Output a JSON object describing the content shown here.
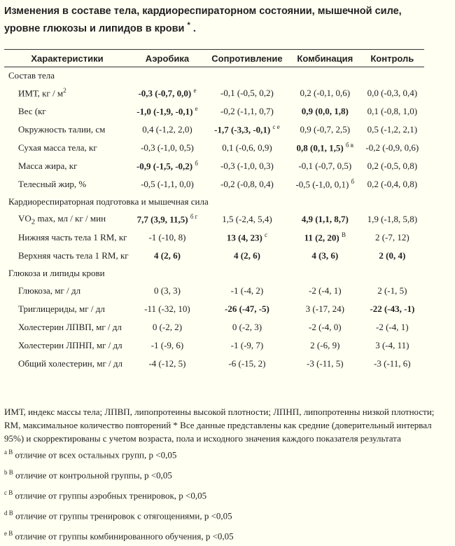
{
  "title": "Изменения в составе тела, кардиореспираторном состоянии, мышечной силе, уровне глюкозы и липидов в крови",
  "title_mark": "*",
  "title_end": ".",
  "headers": [
    "Характеристики",
    "Аэробика",
    "Сопротивление",
    "Комбинация",
    "Контроль"
  ],
  "sections": [
    {
      "name": "Состав тела",
      "rows": [
        {
          "label": "ИМТ, кг / м",
          "label_sup": "2",
          "cells": [
            {
              "v": "-0,3 (-0,7, 0,0)",
              "b": true,
              "s": "е"
            },
            {
              "v": "-0,1 (-0,5, 0,2)",
              "b": false,
              "s": ""
            },
            {
              "v": "0,2 (-0,1, 0,6)",
              "b": false,
              "s": ""
            },
            {
              "v": "0,0 (-0,3, 0,4)",
              "b": false,
              "s": ""
            }
          ]
        },
        {
          "label": "Вес (кг",
          "label_sup": "",
          "cells": [
            {
              "v": "-1,0 (-1,9, -0,1)",
              "b": true,
              "s": "е"
            },
            {
              "v": "-0,2 (-1,1, 0,7)",
              "b": false,
              "s": ""
            },
            {
              "v": "0,9 (0,0, 1,8)",
              "b": true,
              "s": ""
            },
            {
              "v": "0,1 (-0,8, 1,0)",
              "b": false,
              "s": ""
            }
          ]
        },
        {
          "label": "Окружность талии, см",
          "label_sup": "",
          "cells": [
            {
              "v": "0,4 (-1,2, 2,0)",
              "b": false,
              "s": ""
            },
            {
              "v": "-1,7 (-3,3, -0,1)",
              "b": true,
              "s": "с е"
            },
            {
              "v": "0,9 (-0,7, 2,5)",
              "b": false,
              "s": ""
            },
            {
              "v": "0,5 (-1,2, 2,1)",
              "b": false,
              "s": ""
            }
          ]
        },
        {
          "label": "Сухая масса тела, кг",
          "label_sup": "",
          "cells": [
            {
              "v": "-0,3 (-1,0, 0,5)",
              "b": false,
              "s": ""
            },
            {
              "v": "0,1 (-0,6, 0,9)",
              "b": false,
              "s": ""
            },
            {
              "v": "0,8 (0,1, 1,5)",
              "b": true,
              "s": "б в"
            },
            {
              "v": "-0,2 (-0,9, 0,6)",
              "b": false,
              "s": ""
            }
          ]
        },
        {
          "label": "Масса жира, кг",
          "label_sup": "",
          "cells": [
            {
              "v": "-0,9 (-1,5, -0,2)",
              "b": true,
              "s": "б"
            },
            {
              "v": "-0,3 (-1,0, 0,3)",
              "b": false,
              "s": ""
            },
            {
              "v": "-0,1 (-0,7, 0,5)",
              "b": false,
              "s": ""
            },
            {
              "v": "0,2 (-0,5, 0,8)",
              "b": false,
              "s": ""
            }
          ]
        },
        {
          "label": "Телесный жир, %",
          "label_sup": "",
          "cells": [
            {
              "v": "-0,5 (-1,1, 0,0)",
              "b": false,
              "s": ""
            },
            {
              "v": "-0,2 (-0,8, 0,4)",
              "b": false,
              "s": ""
            },
            {
              "v": "-0,5 (-1,0, 0,1)",
              "b": false,
              "s": "б"
            },
            {
              "v": "0,2 (-0,4, 0,8)",
              "b": false,
              "s": ""
            }
          ]
        }
      ]
    },
    {
      "name": "Кардиореспираторная подготовка и мышечная сила",
      "rows": [
        {
          "label": "VO",
          "label_sub": "2",
          "label_rest": " max, мл / кг / мин",
          "label_sup": "",
          "cells": [
            {
              "v": "7,7 (3,9, 11,5)",
              "b": true,
              "s": "б г"
            },
            {
              "v": "1,5 (-2,4, 5,4)",
              "b": false,
              "s": ""
            },
            {
              "v": "4,9 (1,1, 8,7)",
              "b": true,
              "s": ""
            },
            {
              "v": "1,9 (-1,8, 5,8)",
              "b": false,
              "s": ""
            }
          ]
        },
        {
          "label": "Нижняя часть тела 1 RM, кг",
          "label_sup": "",
          "cells": [
            {
              "v": "-1 (-10, 8)",
              "b": false,
              "s": ""
            },
            {
              "v": "13 (4, 23)",
              "b": true,
              "s": "с"
            },
            {
              "v": "11 (2, 20)",
              "b": true,
              "s": "В"
            },
            {
              "v": "2 (-7, 12)",
              "b": false,
              "s": ""
            }
          ]
        },
        {
          "label": "Верхняя часть тела 1 RM, кг",
          "label_sup": "",
          "cells": [
            {
              "v": "4 (2, 6)",
              "b": true,
              "s": ""
            },
            {
              "v": "4 (2, 6)",
              "b": true,
              "s": ""
            },
            {
              "v": "4 (3, 6)",
              "b": true,
              "s": ""
            },
            {
              "v": "2 (0, 4)",
              "b": true,
              "s": ""
            }
          ]
        }
      ]
    },
    {
      "name": "Глюкоза и липиды крови",
      "rows": [
        {
          "label": "Глюкоза, мг / дл",
          "label_sup": "",
          "cells": [
            {
              "v": "0 (3, 3)",
              "b": false,
              "s": ""
            },
            {
              "v": "-1 (-4, 2)",
              "b": false,
              "s": ""
            },
            {
              "v": "-2 (-4, 1)",
              "b": false,
              "s": ""
            },
            {
              "v": "2 (-1, 5)",
              "b": false,
              "s": ""
            }
          ]
        },
        {
          "label": "Триглицериды, мг / дл",
          "label_sup": "",
          "cells": [
            {
              "v": "-11 (-32, 10)",
              "b": false,
              "s": ""
            },
            {
              "v": "-26 (-47, -5)",
              "b": true,
              "s": ""
            },
            {
              "v": "3 (-17, 24)",
              "b": false,
              "s": ""
            },
            {
              "v": "-22 (-43, -1)",
              "b": true,
              "s": ""
            }
          ]
        },
        {
          "label": "Холестерин ЛПВП, мг / дл",
          "label_sup": "",
          "cells": [
            {
              "v": "0 (-2, 2)",
              "b": false,
              "s": ""
            },
            {
              "v": "0 (-2, 3)",
              "b": false,
              "s": ""
            },
            {
              "v": "-2 (-4, 0)",
              "b": false,
              "s": ""
            },
            {
              "v": "-2 (-4, 1)",
              "b": false,
              "s": ""
            }
          ]
        },
        {
          "label": "Холестерин ЛПНП, мг / дл",
          "label_sup": "",
          "cells": [
            {
              "v": "-1 (-9, 6)",
              "b": false,
              "s": ""
            },
            {
              "v": "-1 (-9, 7)",
              "b": false,
              "s": ""
            },
            {
              "v": "2 (-6, 9)",
              "b": false,
              "s": ""
            },
            {
              "v": "3 (-4, 11)",
              "b": false,
              "s": ""
            }
          ]
        },
        {
          "label": "Общий холестерин, мг / дл",
          "label_sup": "",
          "cells": [
            {
              "v": "-4 (-12, 5)",
              "b": false,
              "s": ""
            },
            {
              "v": "-6 (-15, 2)",
              "b": false,
              "s": ""
            },
            {
              "v": "-3 (-11, 5)",
              "b": false,
              "s": ""
            },
            {
              "v": "-3 (-11, 6)",
              "b": false,
              "s": ""
            }
          ]
        }
      ]
    }
  ],
  "footnote": "ИМТ, индекс массы тела; ЛПВП, липопротеины высокой плотности; ЛПНП, липопротеины низкой плотности; RM, максимальное количество повторений * Все данные представлены как средние (доверительный интервал 95%) и скорректированы с учетом возраста, пола и исходного значения каждого показателя результата",
  "notes": [
    {
      "mark": "а В",
      "text": " отличие от всех остальных групп, р <0,05"
    },
    {
      "mark": "b В",
      "text": " отличие от контрольной группы, р <0,05"
    },
    {
      "mark": "с В",
      "text": " отличие от группы аэробных тренировок, р <0,05"
    },
    {
      "mark": "d В",
      "text": " отличие от группы тренировок с отягощениями, р <0,05"
    },
    {
      "mark": "е В",
      "text": " отличие от группы комбинированного обучения, р <0,05"
    }
  ]
}
